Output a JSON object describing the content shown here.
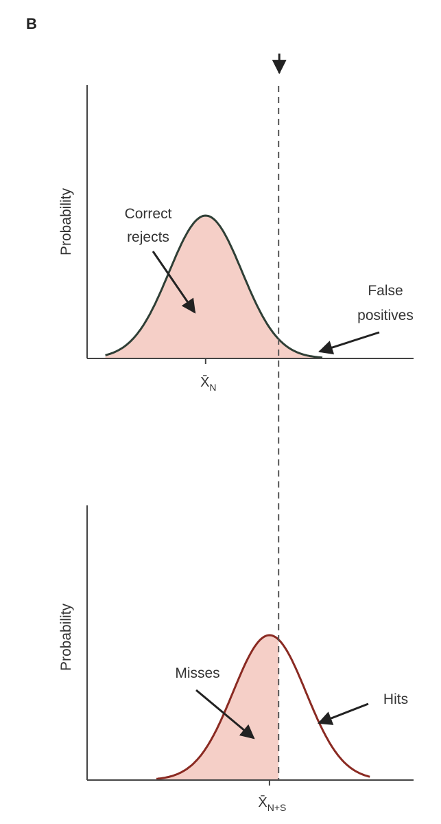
{
  "figure": {
    "panel_label": "B",
    "colors": {
      "fill": "#f5cfc7",
      "noise_curve": "#2f3f36",
      "signal_curve": "#8a2a22",
      "axis": "#444444",
      "criterion": "#555555"
    }
  },
  "chart_data": [
    {
      "type": "area",
      "title": "",
      "xlabel": "",
      "ylabel": "Probability",
      "distribution": "gaussian",
      "tick_label": "X̄",
      "tick_subscript": "N",
      "mean": 0,
      "sd": 1,
      "x_range": [
        -3.25,
        5.7
      ],
      "criterion": 2.0,
      "shaded_region": "whole curve",
      "annotations": [
        {
          "text_lines": [
            "Correct",
            "rejects"
          ],
          "points_to": "area left of criterion"
        },
        {
          "text_lines": [
            "False",
            "positives"
          ],
          "points_to": "tail right of criterion"
        }
      ]
    },
    {
      "type": "area",
      "title": "",
      "xlabel": "",
      "ylabel": "Probability",
      "distribution": "gaussian",
      "tick_label": "X̄",
      "tick_subscript": "N+S",
      "mean": 1.75,
      "sd": 1,
      "x_range": [
        -3.25,
        5.7
      ],
      "criterion": 2.0,
      "shaded_region": "left of criterion",
      "annotations": [
        {
          "text_lines": [
            "Misses"
          ],
          "points_to": "area left of criterion"
        },
        {
          "text_lines": [
            "Hits"
          ],
          "points_to": "area right of criterion"
        }
      ]
    }
  ]
}
